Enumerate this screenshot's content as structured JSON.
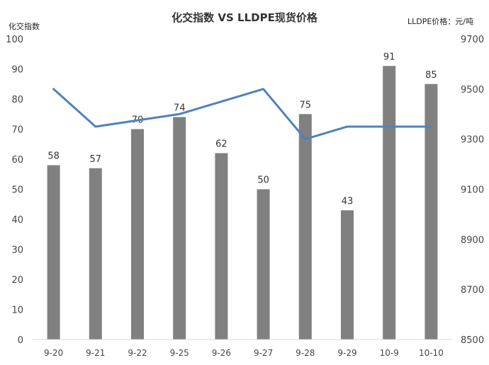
{
  "chart_data": {
    "type": "bar+line",
    "title": "化交指数 VS LLDPE现货价格",
    "y_left_label": "化交指数",
    "y_right_label": "LLDPE价格：元/吨",
    "categories": [
      "9-20",
      "9-21",
      "9-22",
      "9-25",
      "9-26",
      "9-27",
      "9-28",
      "9-29",
      "10-9",
      "10-10"
    ],
    "bars": {
      "values": [
        58,
        57,
        70,
        74,
        62,
        50,
        75,
        43,
        91,
        85
      ],
      "color": "#808080"
    },
    "line": {
      "values": [
        9500,
        9350,
        9375,
        9400,
        9450,
        9500,
        9300,
        9350,
        9350,
        9350
      ],
      "color": "#4f81bd"
    },
    "y_left": {
      "min": 0,
      "max": 100,
      "ticks": [
        "0",
        "10",
        "20",
        "30",
        "40",
        "50",
        "60",
        "70",
        "80",
        "90",
        "100"
      ]
    },
    "y_right": {
      "min": 8500,
      "max": 9700,
      "ticks": [
        "8500",
        "8700",
        "8900",
        "9100",
        "9300",
        "9500",
        "9700"
      ]
    },
    "grid": false,
    "legend": "none"
  }
}
